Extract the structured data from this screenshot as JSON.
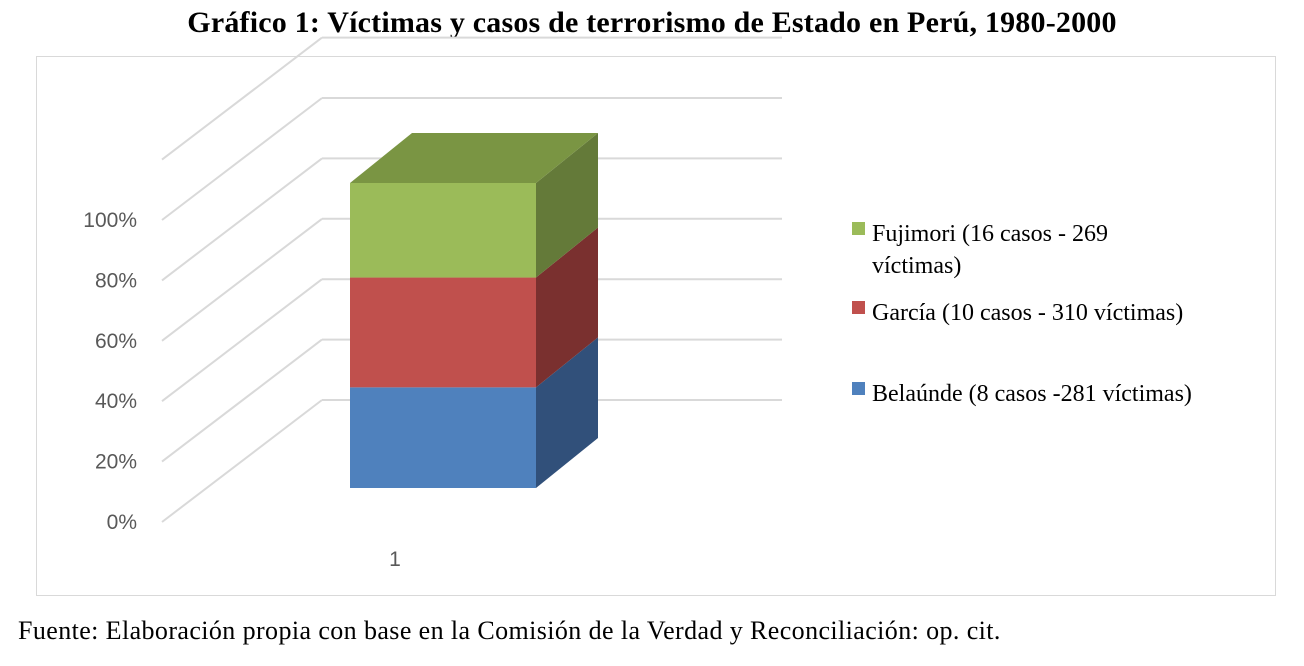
{
  "title": "Gráfico 1: Víctimas y casos de terrorismo de Estado en Perú, 1980-2000",
  "source": "Fuente: Elaboración propia con base en la Comisión de la Verdad y Reconciliación: op. cit.",
  "chart_data": {
    "type": "bar",
    "stacked": "100%",
    "style": "3d",
    "categories": [
      "1"
    ],
    "y_ticks": [
      "0%",
      "20%",
      "40%",
      "60%",
      "80%",
      "100%"
    ],
    "ylim": [
      0,
      100
    ],
    "grid": true,
    "legend_position": "right",
    "series": [
      {
        "name": "Belaúnde (8 casos -281 víctimas)",
        "values": [
          33
        ],
        "color": "#4f81bd",
        "side_color": "#31507a",
        "top_color": "#3d6699"
      },
      {
        "name": "García (10 casos - 310 víctimas)",
        "values": [
          36
        ],
        "color": "#c0504d",
        "side_color": "#7a302f",
        "top_color": "#9a3d3a"
      },
      {
        "name": "Fujimori (16 casos - 269 víctimas)",
        "values": [
          31
        ],
        "color": "#9bbb59",
        "side_color": "#647a39",
        "top_color": "#7a9543"
      }
    ]
  }
}
